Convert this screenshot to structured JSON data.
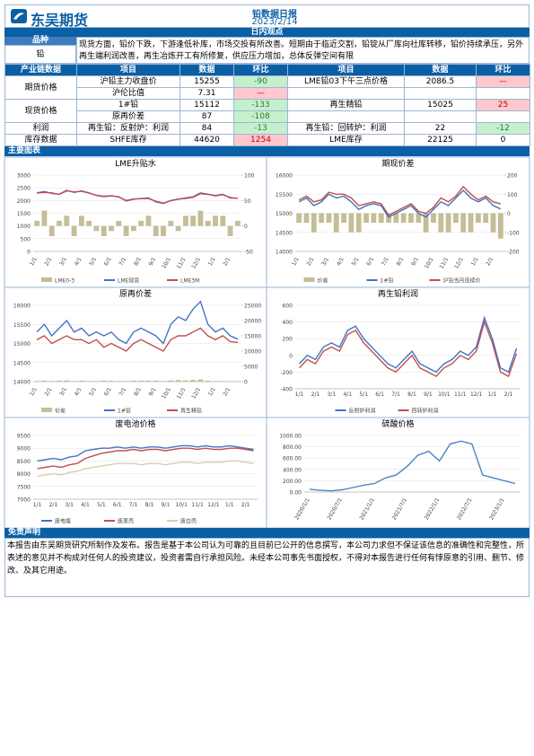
{
  "header": {
    "logo": "东吴期货",
    "title": "铅数据日报",
    "date": "2023/2/14"
  },
  "view": {
    "section": "日内观点",
    "label_head": "品种",
    "variety": "铅",
    "text": "现货方面，铅价下跌，下游逢低补库，市场交投有所改善。短期由于临近交割，铅锭从厂库向社库转移，铅价持续承压，另外再生端利润改善，再生冶炼开工有所修复，供应压力增加，总体反弹空间有限"
  },
  "table": {
    "header": [
      "产业链数据",
      "项目",
      "数据",
      "环比",
      "项目",
      "数据",
      "环比"
    ],
    "groups": [
      {
        "name": "期货价格",
        "rows": [
          [
            "沪铅主力收盘价",
            15255,
            -90,
            "LME铅03下午三点价格",
            2086.5,
            "—"
          ],
          [
            "沪伦比值",
            7.31,
            "—"
          ]
        ]
      },
      {
        "name": "现货价格",
        "rows": [
          [
            "1#铅",
            15112,
            -133,
            "再生精铅",
            15025,
            25
          ],
          [
            "原再价差",
            87,
            -108
          ]
        ]
      },
      {
        "name": "利润",
        "rows": [
          [
            "再生铅：反射炉：利润",
            84,
            -13,
            "再生铅：回转炉：利润",
            22,
            -12
          ]
        ]
      },
      {
        "name": "库存数据",
        "rows": [
          [
            "SHFE库存",
            44620,
            1254,
            "LME库存",
            22125,
            0
          ]
        ]
      }
    ]
  },
  "charts_title": "主要图表",
  "chart_data": [
    {
      "type": "line",
      "title": "LME升贴水",
      "grid": true,
      "categories": [
        "1/1",
        null,
        "2/1",
        null,
        "3/1",
        null,
        "4/1",
        null,
        "5/1",
        null,
        "6/1",
        null,
        "7/1",
        null,
        "8/1",
        null,
        "9/1",
        null,
        "10/1",
        null,
        "11/1",
        null,
        "12/1",
        null,
        "1/1",
        null,
        "2/1",
        null
      ],
      "ylim": [
        0,
        3000
      ],
      "yticks": [
        0,
        500,
        1000,
        1500,
        2000,
        2500,
        3000
      ],
      "y2lim": [
        -50,
        100
      ],
      "y2ticks": [
        -50,
        0,
        50,
        100
      ],
      "series": [
        {
          "name": "LME0-3",
          "type": "bar",
          "axis": "y2",
          "color": "#c4bd97",
          "values": [
            10,
            30,
            -20,
            10,
            20,
            -20,
            20,
            10,
            -10,
            -20,
            -10,
            10,
            -20,
            -10,
            10,
            20,
            -20,
            -20,
            10,
            -10,
            20,
            20,
            30,
            10,
            20,
            20,
            -20,
            10
          ]
        },
        {
          "name": "LME现货",
          "color": "#4472c4",
          "values": [
            2300,
            2350,
            2280,
            2250,
            2400,
            2320,
            2380,
            2300,
            2200,
            2150,
            2180,
            2150,
            1980,
            2050,
            2080,
            2100,
            1950,
            1880,
            2000,
            2050,
            2100,
            2150,
            2300,
            2250,
            2200,
            2250,
            2100,
            2090
          ]
        },
        {
          "name": "LME3M",
          "color": "#c0504d",
          "values": [
            2290,
            2320,
            2300,
            2240,
            2380,
            2340,
            2360,
            2290,
            2210,
            2170,
            2190,
            2140,
            2000,
            2060,
            2070,
            2080,
            1970,
            1900,
            1990,
            2060,
            2080,
            2130,
            2270,
            2240,
            2180,
            2230,
            2120,
            2080
          ]
        }
      ]
    },
    {
      "type": "line",
      "title": "期现价差",
      "grid": true,
      "categories": [
        "1/1",
        null,
        "2/1",
        null,
        "3/1",
        null,
        "4/1",
        null,
        "5/1",
        null,
        "6/1",
        null,
        "7/1",
        null,
        "8/1",
        null,
        "9/1",
        null,
        "10/1",
        null,
        "11/1",
        null,
        "12/1",
        null,
        "1/1",
        null,
        "2/1",
        null
      ],
      "ylim": [
        14000,
        16000
      ],
      "yticks": [
        14000,
        14500,
        15000,
        15500,
        16000
      ],
      "y2lim": [
        -200,
        200
      ],
      "y2ticks": [
        -200,
        -100,
        0,
        100,
        200
      ],
      "series": [
        {
          "name": "价差",
          "type": "bar",
          "axis": "y2",
          "color": "#c4bd97",
          "values": [
            -50,
            -50,
            -100,
            -50,
            -50,
            -100,
            -50,
            -100,
            -100,
            -50,
            -50,
            -50,
            -50,
            -50,
            -50,
            -50,
            -50,
            -100,
            -50,
            -100,
            -100,
            -50,
            -100,
            -100,
            -50,
            -50,
            -100,
            -133
          ]
        },
        {
          "name": "1#铅",
          "color": "#4472c4",
          "values": [
            15300,
            15400,
            15200,
            15300,
            15500,
            15400,
            15450,
            15300,
            15100,
            15200,
            15250,
            15200,
            14900,
            15000,
            15100,
            15200,
            15000,
            14900,
            15100,
            15300,
            15200,
            15400,
            15600,
            15400,
            15300,
            15400,
            15200,
            15112
          ]
        },
        {
          "name": "沪铅当月连续价",
          "color": "#c0504d",
          "values": [
            15350,
            15450,
            15300,
            15350,
            15550,
            15500,
            15500,
            15400,
            15200,
            15250,
            15300,
            15250,
            14950,
            15050,
            15150,
            15250,
            15050,
            15000,
            15150,
            15400,
            15300,
            15450,
            15700,
            15500,
            15350,
            15450,
            15300,
            15245
          ]
        }
      ]
    },
    {
      "type": "line",
      "title": "原再价差",
      "grid": true,
      "categories": [
        "1/1",
        null,
        "2/1",
        null,
        "3/1",
        null,
        "4/1",
        null,
        "5/1",
        null,
        "6/1",
        null,
        "7/1",
        null,
        "8/1",
        null,
        "9/1",
        null,
        "10/1",
        null,
        "11/1",
        null,
        "12/1",
        null,
        "1/1",
        null,
        "2/1",
        null
      ],
      "ylim": [
        14000,
        16000
      ],
      "yticks": [
        14000,
        14500,
        15000,
        15500,
        16000
      ],
      "y2lim": [
        0,
        25000
      ],
      "y2ticks": [
        0,
        5000,
        10000,
        15000,
        20000,
        25000
      ],
      "series": [
        {
          "name": "价差",
          "type": "bar",
          "axis": "y2",
          "color": "#c4bd97",
          "values": [
            200,
            300,
            200,
            300,
            400,
            200,
            300,
            200,
            200,
            300,
            300,
            200,
            200,
            300,
            300,
            300,
            300,
            200,
            400,
            500,
            400,
            600,
            700,
            300,
            200,
            200,
            150,
            87
          ]
        },
        {
          "name": "1#铅",
          "color": "#4472c4",
          "values": [
            15300,
            15500,
            15200,
            15400,
            15600,
            15300,
            15400,
            15200,
            15300,
            15200,
            15300,
            15100,
            15000,
            15300,
            15400,
            15300,
            15200,
            15000,
            15500,
            15700,
            15600,
            15900,
            16100,
            15500,
            15300,
            15400,
            15200,
            15112
          ]
        },
        {
          "name": "再生精铅",
          "color": "#c0504d",
          "values": [
            15100,
            15200,
            15000,
            15100,
            15200,
            15100,
            15100,
            15000,
            15100,
            14900,
            15000,
            14900,
            14800,
            15000,
            15100,
            15000,
            14900,
            14800,
            15100,
            15200,
            15200,
            15300,
            15400,
            15200,
            15100,
            15200,
            15050,
            15025
          ]
        }
      ]
    },
    {
      "type": "line",
      "title": "再生铅利润",
      "grid": true,
      "categories": [
        "1/1",
        null,
        "2/1",
        null,
        "3/1",
        null,
        "4/1",
        null,
        "5/1",
        null,
        "6/1",
        null,
        "7/1",
        null,
        "8/1",
        null,
        "9/1",
        null,
        "10/1",
        null,
        "11/1",
        null,
        "12/1",
        null,
        "1/1",
        null,
        "2/1",
        null
      ],
      "ylim": [
        -400,
        600
      ],
      "yticks": [
        -400,
        -200,
        0,
        200,
        400,
        600
      ],
      "series": [
        {
          "name": "反射炉利润",
          "color": "#4472c4",
          "values": [
            -100,
            0,
            -50,
            100,
            150,
            100,
            300,
            350,
            200,
            100,
            0,
            -100,
            -150,
            -50,
            50,
            -100,
            -150,
            -200,
            -100,
            -50,
            50,
            0,
            100,
            450,
            200,
            -150,
            -200,
            84
          ]
        },
        {
          "name": "回转炉利润",
          "color": "#c0504d",
          "values": [
            -150,
            -50,
            -100,
            50,
            100,
            50,
            250,
            300,
            150,
            50,
            -50,
            -150,
            -200,
            -100,
            0,
            -150,
            -200,
            -250,
            -150,
            -100,
            0,
            -50,
            50,
            400,
            150,
            -200,
            -250,
            22
          ]
        }
      ]
    },
    {
      "type": "line",
      "title": "废电池价格",
      "grid": true,
      "categories": [
        "1/1",
        null,
        "2/1",
        null,
        "3/1",
        null,
        "4/1",
        null,
        "5/1",
        null,
        "6/1",
        null,
        "7/1",
        null,
        "8/1",
        null,
        "9/1",
        null,
        "10/1",
        null,
        "11/1",
        null,
        "12/1",
        null,
        "1/1",
        null,
        "2/1",
        null
      ],
      "ylim": [
        7000,
        9500
      ],
      "yticks": [
        7000,
        7500,
        8000,
        8500,
        9000,
        9500
      ],
      "series": [
        {
          "name": "废电瓶",
          "color": "#4472c4",
          "values": [
            8500,
            8550,
            8600,
            8550,
            8650,
            8700,
            8900,
            8950,
            9000,
            9000,
            9050,
            9000,
            9050,
            9000,
            9050,
            9050,
            9000,
            9050,
            9100,
            9100,
            9050,
            9100,
            9050,
            9050,
            9100,
            9050,
            9000,
            8950
          ]
        },
        {
          "name": "废黑壳",
          "color": "#c0504d",
          "values": [
            8200,
            8250,
            8300,
            8250,
            8350,
            8400,
            8600,
            8700,
            8800,
            8850,
            8900,
            8900,
            8950,
            8900,
            8950,
            8950,
            8900,
            8950,
            9000,
            9000,
            8950,
            9000,
            8950,
            8950,
            9000,
            9000,
            8950,
            8900
          ]
        },
        {
          "name": "废白壳",
          "color": "#d9cfae",
          "values": [
            7900,
            7950,
            8000,
            7950,
            8050,
            8100,
            8200,
            8250,
            8300,
            8350,
            8400,
            8400,
            8400,
            8350,
            8400,
            8400,
            8350,
            8400,
            8450,
            8450,
            8400,
            8450,
            8450,
            8450,
            8500,
            8500,
            8450,
            8400
          ]
        }
      ]
    },
    {
      "type": "line",
      "title": "硫酸价格",
      "grid": true,
      "categories": [
        "2020/1/1",
        null,
        null,
        "2020/7/1",
        null,
        null,
        "2021/1/1",
        null,
        null,
        "2021/7/1",
        null,
        null,
        "2022/1/1",
        null,
        null,
        "2022/7/1",
        null,
        null,
        "2023/1/1",
        null
      ],
      "ylim": [
        0,
        1000
      ],
      "yticks": [
        {
          "value": 0,
          "label": "0.00"
        },
        {
          "value": 200,
          "label": "200.00"
        },
        {
          "value": 400,
          "label": "400.00"
        },
        {
          "value": 600,
          "label": "600.00"
        },
        {
          "value": 800,
          "label": "800.00"
        },
        {
          "value": 1000,
          "label": "1000.00"
        }
      ],
      "series": [
        {
          "color": "#4a86c5",
          "values": [
            50,
            30,
            20,
            40,
            80,
            120,
            150,
            250,
            300,
            450,
            650,
            720,
            550,
            850,
            900,
            850,
            300,
            250,
            200,
            150
          ]
        }
      ]
    }
  ],
  "disclaimer": {
    "title": "免责声明",
    "text": "本报告由东吴期货研究所制作及发布。报告是基于本公司认为可靠的且目前已公开的信息撰写，本公司力求但不保证该信息的准确性和完整性，所表述的意见并不构成对任何人的投资建议，投资者需自行承担风险。未经本公司事先书面授权，不得对本报告进行任何有悖原意的引用、删节、修改、及其它用途。"
  }
}
